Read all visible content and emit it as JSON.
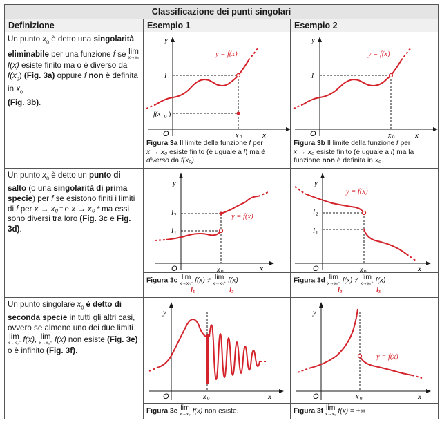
{
  "title": "Classificazione dei punti singolari",
  "headers": {
    "def": "Definizione",
    "ex1": "Esempio 1",
    "ex2": "Esempio 2"
  },
  "row1": {
    "def": {
      "p1": "Un punto ",
      "x0": "x",
      "p2": " è detto una ",
      "bold1": "singolarità eliminabile",
      "p3": " per una funzione ",
      "f": "f",
      "p4": " se ",
      "lim": "lim",
      "limsub": "x→x₀",
      "fx": "f(x)",
      "p5": " esiste finito ma o è diverso da ",
      "fx0": "f(x",
      "p6": ") ",
      "ref1": "(Fig. 3a)",
      "p7": " oppure ",
      "f2": "f",
      "bold2": " non",
      "p8": " è definita in ",
      "x0b": "x",
      "ref2": "(Fig. 3b)",
      "p9": "."
    },
    "fig_a": {
      "label_y": "y",
      "label_x": "x",
      "label_o": "O",
      "label_x0": "x",
      "label_l": "l",
      "label_fx0": "f(x",
      "label_curve": "y = f(x)",
      "cap_bold": "Figura 3a",
      "cap_text": " Il limite della funzione ",
      "cap_f": "f",
      "cap_text2": " per ",
      "cap_x": "x → x₀",
      "cap_text3": " esiste finito (è uguale a ",
      "cap_l": "l",
      "cap_text4": ") ma ",
      "cap_it": "è diverso",
      "cap_text5": " da ",
      "cap_fx0": "f(x₀)."
    },
    "fig_b": {
      "label_y": "y",
      "label_x": "x",
      "label_o": "O",
      "label_x0": "x",
      "label_l": "l",
      "label_curve": "y = f(x)",
      "cap_bold": "Figura 3b",
      "cap_text": " Il limite della funzione ",
      "cap_f": "f",
      "cap_text2": " per ",
      "cap_x": "x → x₀",
      "cap_text3": " esiste finito (è uguale a ",
      "cap_l": "l",
      "cap_text4": ") ma la funzione ",
      "cap_bold2": "non",
      "cap_text5": " è definita in ",
      "cap_x0": "x₀."
    }
  },
  "row2": {
    "def": {
      "p1": "Un punto ",
      "x0": "x",
      "p2": " è detto un ",
      "bold1": "punto di salto",
      "p3": " (o una ",
      "bold2": "singolarità di prima specie",
      "p4": ") per ",
      "f": "f",
      "p5": " se esistono finiti i limiti di ",
      "f2": "f",
      "p6": " per ",
      "xm": "x → x₀⁻",
      "p7": " e ",
      "xp": "x → x₀⁺",
      "p8": " ma essi sono diversi tra loro ",
      "ref1": "(Fig. 3c",
      "p9": " e ",
      "ref2": "Fig. 3d)",
      "p10": "."
    },
    "fig_c": {
      "label_y": "y",
      "label_x": "x",
      "label_o": "O",
      "label_x0": "x",
      "label_l1": "l",
      "label_l2": "l",
      "label_curve": "y = f(x)",
      "cap_bold": "Figura 3c",
      "lim": "lim",
      "sub_minus": "x→x₀⁻",
      "sub_plus": "x→x₀⁺",
      "fx": "f(x)",
      "neq": "≠",
      "under1": "l₁",
      "under2": "l₂"
    },
    "fig_d": {
      "label_y": "y",
      "label_x": "x",
      "label_o": "O",
      "label_x0": "x",
      "label_l1": "l",
      "label_l2": "l",
      "label_curve": "y = f(x)",
      "cap_bold": "Figura 3d",
      "lim": "lim",
      "sub_minus": "x→x₀⁻",
      "sub_plus": "x→x₀⁺",
      "fx": "f(x)",
      "neq": "≠",
      "under1": "l₂",
      "under2": "l₁"
    }
  },
  "row3": {
    "def": {
      "p1": "Un punto singolare ",
      "x0": "x",
      "bold1": " è detto di seconda specie",
      "p2": " in tutti gli altri casi, ovvero se almeno uno dei due limiti ",
      "lim": "lim",
      "sub_minus": "x→x₀⁻",
      "sub_plus": "x→x₀⁺",
      "fx": "f(x),",
      "fx2": "f(x)",
      "p3": " non esiste ",
      "ref1": "(Fig. 3e)",
      "p4": " o è infinito ",
      "ref2": "(Fig. 3f)",
      "p5": "."
    },
    "fig_e": {
      "label_y": "y",
      "label_x": "x",
      "label_o": "O",
      "label_x0": "x",
      "cap_bold": "Figura 3e",
      "lim": "lim",
      "sub": "x→x₀",
      "fx": "f(x)",
      "cap_text": " non esiste."
    },
    "fig_f": {
      "label_y": "y",
      "label_x": "x",
      "label_o": "O",
      "label_x0": "x",
      "label_curve": "y = f(x)",
      "cap_bold": "Figura 3f",
      "lim": "lim",
      "sub": "x→x₀",
      "fx": "f(x)",
      "cap_text": " = +∞"
    }
  },
  "colors": {
    "curve": "#d4232b",
    "axis": "#1a1a1a",
    "header_bg": "#e4e4e4"
  }
}
